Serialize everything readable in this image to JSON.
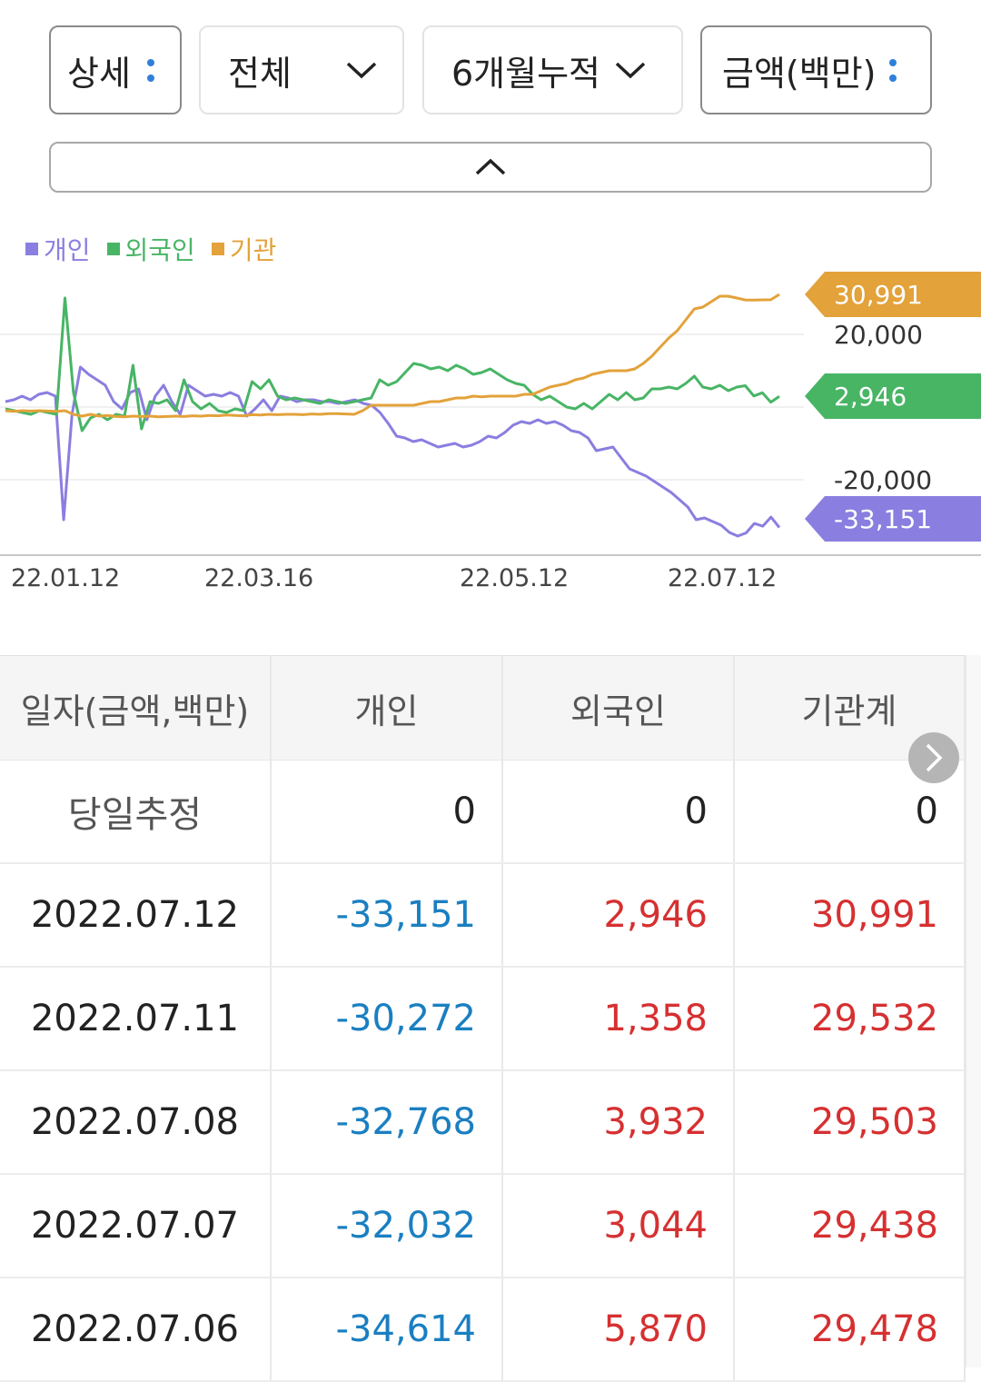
{
  "filters": {
    "detail": {
      "label": "상세"
    },
    "scope": {
      "label": "전체"
    },
    "period": {
      "label": "6개월누적"
    },
    "unit": {
      "label": "금액(백만)"
    }
  },
  "legend": [
    {
      "label": "개인",
      "color": "#8a7ee0"
    },
    {
      "label": "외국인",
      "color": "#48b565"
    },
    {
      "label": "기관",
      "color": "#e3a23a"
    }
  ],
  "chart_data": {
    "type": "line",
    "x_tick_labels": [
      "22.01.12",
      "22.03.16",
      "22.05.12",
      "22.07.12"
    ],
    "y_tick_labels": [
      "20,000",
      "-20,000"
    ],
    "ylim": [
      -40000,
      40000
    ],
    "end_labels": [
      {
        "series": "기관",
        "value": "30,991",
        "color": "#e3a23a"
      },
      {
        "series": "외국인",
        "value": "2,946",
        "color": "#48b565"
      },
      {
        "series": "개인",
        "value": "-33,151",
        "color": "#8a7ee0"
      }
    ],
    "series": [
      {
        "name": "개인",
        "color": "#8a7ee0",
        "values": [
          1500,
          2000,
          3000,
          2000,
          3500,
          4000,
          3000,
          -31000,
          -2000,
          11000,
          9000,
          7500,
          6000,
          1500,
          -500,
          4000,
          5000,
          -3500,
          3000,
          6000,
          1500,
          -2000,
          6000,
          4500,
          3000,
          3500,
          3000,
          4000,
          3000,
          -2500,
          -500,
          2000,
          -1000,
          3000,
          2500,
          1500,
          2000,
          2000,
          1500,
          1500,
          1000,
          1500,
          2000,
          1000,
          500,
          -1500,
          -4500,
          -8000,
          -8500,
          -9500,
          -9000,
          -10000,
          -11000,
          -10500,
          -10000,
          -11000,
          -10500,
          -9500,
          -8000,
          -8500,
          -7000,
          -5000,
          -4000,
          -4500,
          -3500,
          -4500,
          -4000,
          -5000,
          -6500,
          -7000,
          -8500,
          -12000,
          -11500,
          -11000,
          -14000,
          -17000,
          -18000,
          -19000,
          -20500,
          -22000,
          -23500,
          -25500,
          -27500,
          -31000,
          -30500,
          -31500,
          -32500,
          -34500,
          -35500,
          -34614,
          -32032,
          -32768,
          -30272,
          -33151
        ]
      },
      {
        "name": "외국인",
        "color": "#48b565",
        "values": [
          -500,
          -1000,
          -1500,
          -2000,
          -1000,
          -1500,
          -2000,
          30000,
          4000,
          -6500,
          -3000,
          -2000,
          -3500,
          -2000,
          -2500,
          11500,
          -6000,
          1500,
          1000,
          2000,
          -1000,
          7500,
          1500,
          -500,
          1000,
          -1000,
          -1500,
          -500,
          -1000,
          7000,
          5000,
          7500,
          3000,
          2000,
          2500,
          2000,
          1500,
          1000,
          2000,
          1500,
          1000,
          1500,
          2000,
          2500,
          7500,
          6000,
          7000,
          9500,
          12000,
          11500,
          10500,
          11000,
          10000,
          11500,
          10500,
          9000,
          9500,
          10500,
          9000,
          7500,
          6500,
          6000,
          3500,
          2000,
          3000,
          1500,
          0,
          -500,
          1000,
          -500,
          1500,
          3500,
          2000,
          4000,
          2000,
          2500,
          5000,
          5000,
          5500,
          5000,
          6500,
          8500,
          5500,
          5000,
          6000,
          4500,
          5500,
          5870,
          3044,
          3932,
          1358,
          2946
        ]
      },
      {
        "name": "기관",
        "color": "#e3a23a",
        "values": [
          -1000,
          -1200,
          -1000,
          -1100,
          -1000,
          -1100,
          -1200,
          -1000,
          -2000,
          -2500,
          -2000,
          -2500,
          -2300,
          -2600,
          -2700,
          -2500,
          -2600,
          -2500,
          -2700,
          -2600,
          -2500,
          -2600,
          -2400,
          -2500,
          -2300,
          -2400,
          -2200,
          -2300,
          -2400,
          -2100,
          -2200,
          -2000,
          -2100,
          -2000,
          -2000,
          -2100,
          -1900,
          -2000,
          -1800,
          -1800,
          -1900,
          -2000,
          -1000,
          500,
          500,
          500,
          500,
          500,
          500,
          1000,
          1500,
          1500,
          2000,
          2500,
          2500,
          3000,
          2800,
          3000,
          3000,
          3000,
          3000,
          3500,
          3500,
          4500,
          5500,
          6000,
          6500,
          7500,
          8000,
          9000,
          9500,
          10000,
          10000,
          10000,
          10500,
          12000,
          14000,
          16500,
          19000,
          21000,
          24000,
          27000,
          27500,
          29000,
          30500,
          30500,
          30000,
          29478,
          29438,
          29503,
          29532,
          30991
        ]
      }
    ]
  },
  "table": {
    "headers": [
      "일자(금액,백만)",
      "개인",
      "외국인",
      "기관계"
    ],
    "rows": [
      {
        "date": "당일추정",
        "individual": "0",
        "foreign": "0",
        "institution": "0"
      },
      {
        "date": "2022.07.12",
        "individual": "-33,151",
        "foreign": "2,946",
        "institution": "30,991"
      },
      {
        "date": "2022.07.11",
        "individual": "-30,272",
        "foreign": "1,358",
        "institution": "29,532"
      },
      {
        "date": "2022.07.08",
        "individual": "-32,768",
        "foreign": "3,932",
        "institution": "29,503"
      },
      {
        "date": "2022.07.07",
        "individual": "-32,032",
        "foreign": "3,044",
        "institution": "29,438"
      },
      {
        "date": "2022.07.06",
        "individual": "-34,614",
        "foreign": "5,870",
        "institution": "29,478"
      }
    ]
  }
}
